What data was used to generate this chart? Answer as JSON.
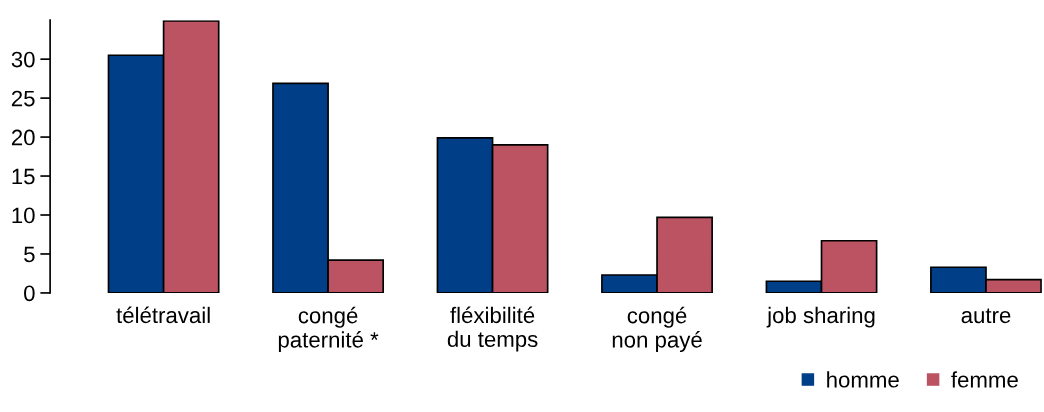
{
  "chart_data": {
    "type": "bar",
    "categories": [
      "télétravail",
      "congé\npaternité *",
      "fléxibilité\ndu temps",
      "congé\nnon payé",
      "job sharing",
      "autre"
    ],
    "series": [
      {
        "name": "homme",
        "color": "#003f87",
        "values": [
          30.5,
          26.9,
          19.9,
          2.3,
          1.5,
          3.3
        ]
      },
      {
        "name": "femme",
        "color": "#bc5362",
        "values": [
          34.9,
          4.2,
          19.0,
          9.7,
          6.7,
          1.7
        ]
      }
    ],
    "ylim": [
      0,
      35
    ],
    "yticks": [
      0,
      5,
      10,
      15,
      20,
      25,
      30
    ],
    "grid": false,
    "legend": "bottom right"
  }
}
